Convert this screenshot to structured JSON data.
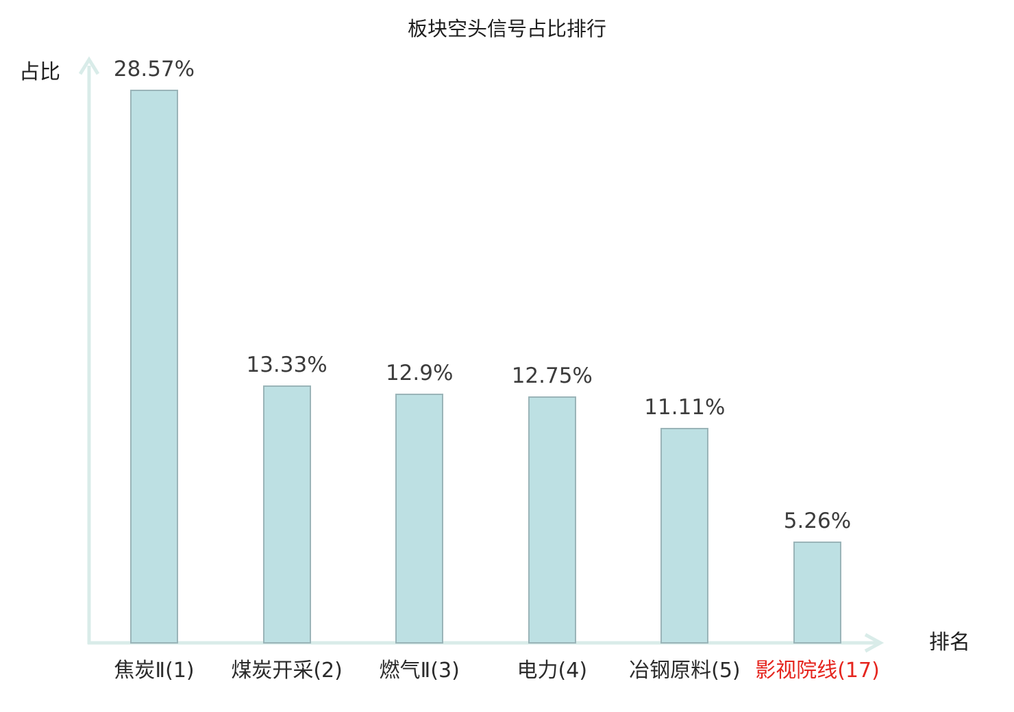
{
  "chart_data": {
    "type": "bar",
    "title": "板块空头信号占比排行",
    "ylabel": "占比",
    "xlabel": "排名",
    "categories": [
      "焦炭Ⅱ(1)",
      "煤炭开采(2)",
      "燃气Ⅱ(3)",
      "电力(4)",
      "冶钢原料(5)",
      "影视院线(17)"
    ],
    "values": [
      28.57,
      13.33,
      12.9,
      12.75,
      11.11,
      5.26
    ],
    "value_labels": [
      "28.57%",
      "13.33%",
      "12.9%",
      "12.75%",
      "11.11%",
      "5.26%"
    ],
    "category_colors": [
      "#2b2b2b",
      "#2b2b2b",
      "#2b2b2b",
      "#2b2b2b",
      "#2b2b2b",
      "#e5261f"
    ],
    "ylim": [
      0,
      30
    ],
    "grid": false,
    "legend": false,
    "colors": {
      "bar_fill": "#bde0e3",
      "bar_border": "#9ab4b8",
      "axis": "#d9ece9",
      "value_text": "#3c3c3c",
      "title_text": "#1e1e1e",
      "highlight": "#e5261f"
    }
  }
}
